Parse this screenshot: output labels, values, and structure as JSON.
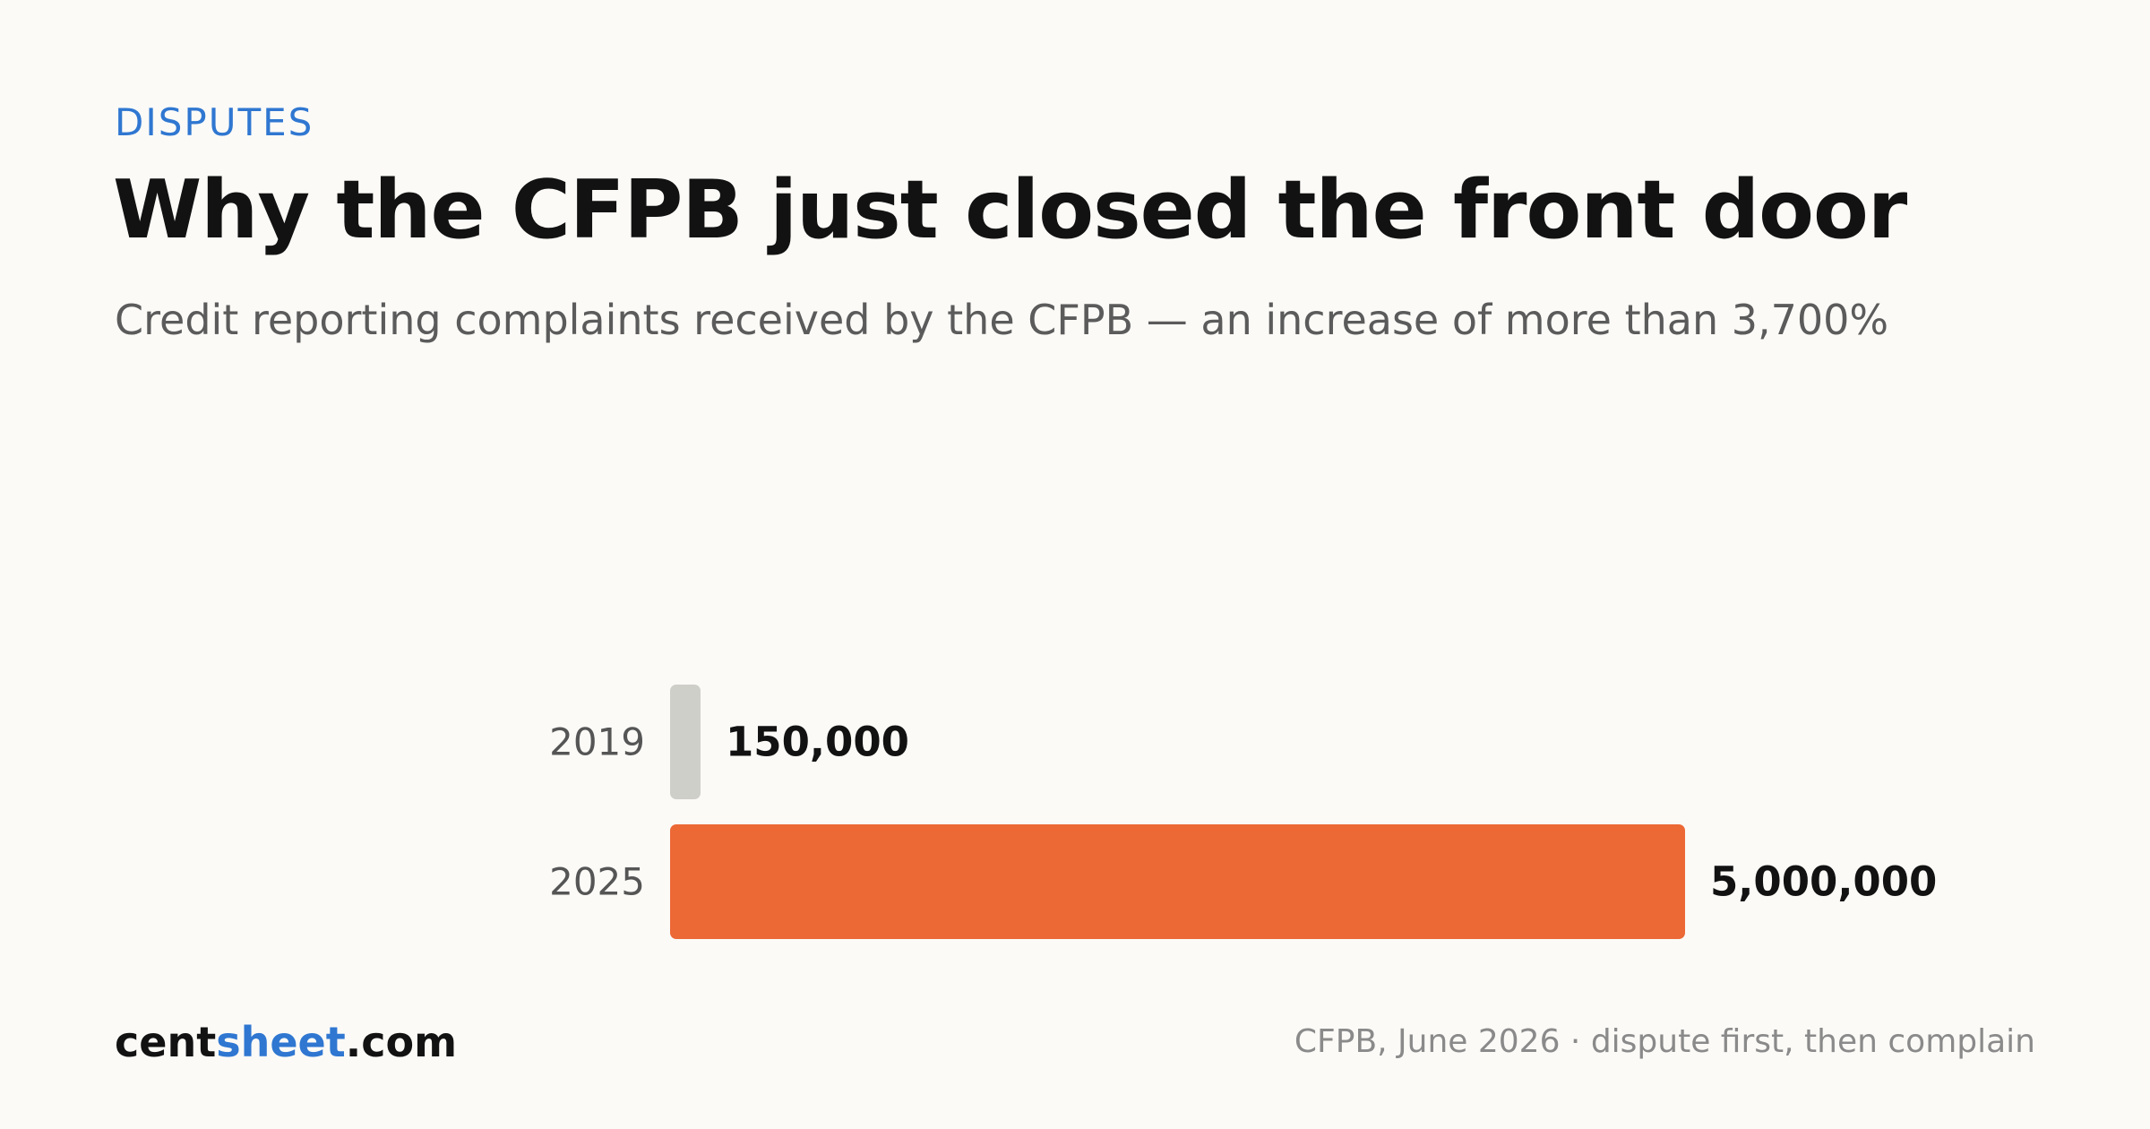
{
  "header": {
    "eyebrow": "DISPUTES",
    "title": "Why the CFPB just closed the front door",
    "subtitle": "Credit reporting complaints received by the CFPB — an increase of more than 3,700%"
  },
  "chart_data": {
    "type": "bar",
    "orientation": "horizontal",
    "categories": [
      "2019",
      "2025"
    ],
    "values": [
      150000,
      5000000
    ],
    "value_labels": [
      "150,000",
      "5,000,000"
    ],
    "colors": [
      "#cfcfc9",
      "#ec6835"
    ],
    "title": "",
    "xlabel": "",
    "ylabel": "",
    "xlim": [
      0,
      5000000
    ],
    "grid": false,
    "legend": "none"
  },
  "footer": {
    "brand_prefix": "cent",
    "brand_accent": "sheet",
    "brand_suffix": ".com",
    "source": "CFPB, June 2026 · dispute first, then complain"
  }
}
